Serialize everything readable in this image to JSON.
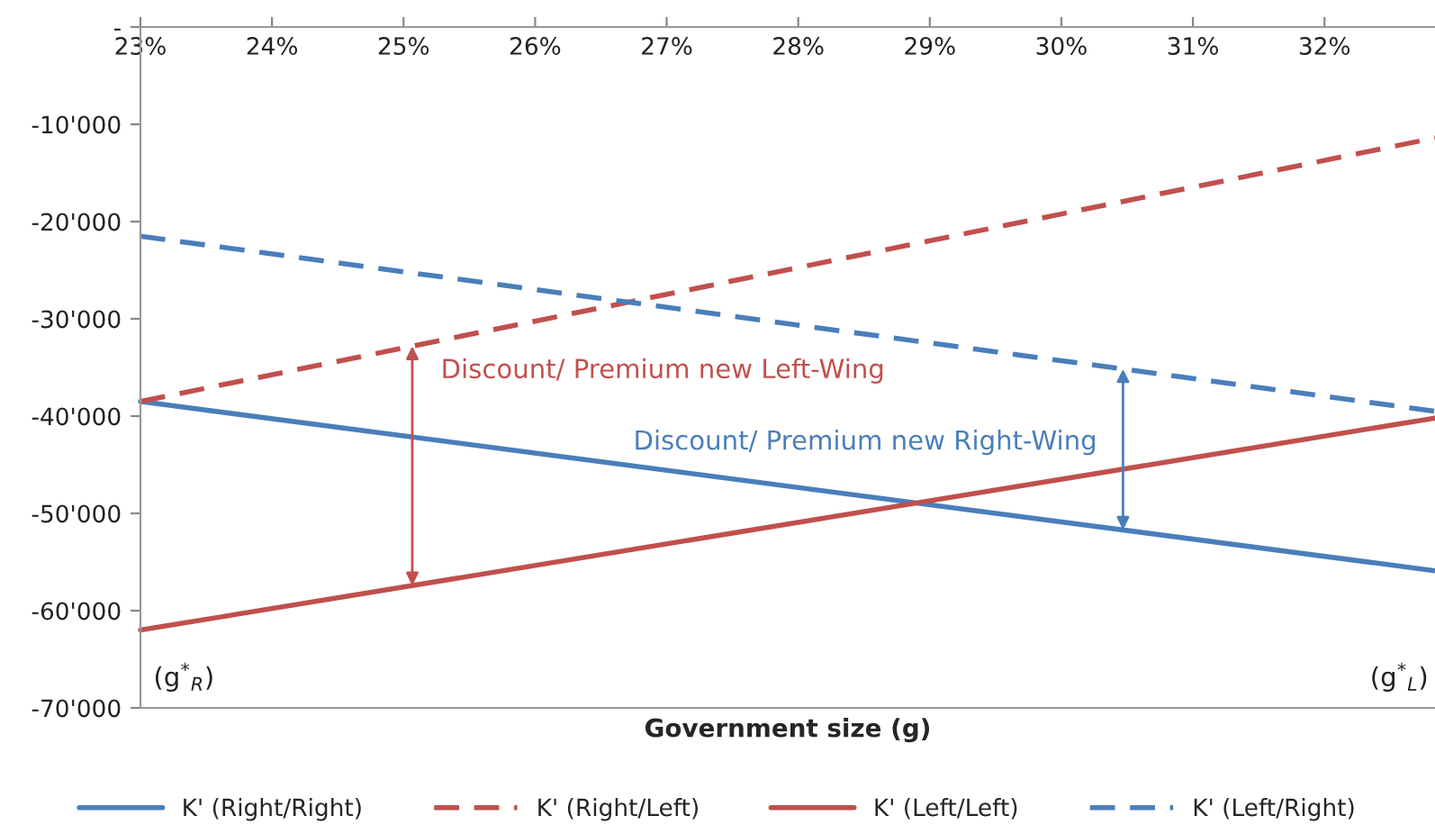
{
  "chart_data": {
    "type": "line",
    "xlabel": "Government size (g)",
    "x": [
      23,
      32.84
    ],
    "series": [
      {
        "name": "K' (Right/Right)",
        "color": "#4a7ebb",
        "line_style": "solid",
        "values": [
          -38500,
          -55900
        ]
      },
      {
        "name": "K' (Right/Left)",
        "color": "#c0504d",
        "line_style": "dashed",
        "values": [
          -38500,
          -11400
        ]
      },
      {
        "name": "K' (Left/Left)",
        "color": "#c0504d",
        "line_style": "solid",
        "values": [
          -62000,
          -40200
        ]
      },
      {
        "name": "K' (Left/Right)",
        "color": "#4a7ebb",
        "line_style": "dashed",
        "values": [
          -21500,
          -39500
        ]
      }
    ],
    "xlim": [
      23,
      32.84
    ],
    "xticks": [
      {
        "value": 23,
        "label": "23%"
      },
      {
        "value": 24,
        "label": "24%"
      },
      {
        "value": 25,
        "label": "25%"
      },
      {
        "value": 26,
        "label": "26%"
      },
      {
        "value": 27,
        "label": "27%"
      },
      {
        "value": 28,
        "label": "28%"
      },
      {
        "value": 29,
        "label": "29%"
      },
      {
        "value": 30,
        "label": "30%"
      },
      {
        "value": 31,
        "label": "31%"
      },
      {
        "value": 32,
        "label": "32%"
      }
    ],
    "ylim": [
      -70000,
      0
    ],
    "yticks": [
      {
        "value": 0,
        "label": "-"
      },
      {
        "value": -10000,
        "label": "-10'000"
      },
      {
        "value": -20000,
        "label": "-20'000"
      },
      {
        "value": -30000,
        "label": "-30'000"
      },
      {
        "value": -40000,
        "label": "-40'000"
      },
      {
        "value": -50000,
        "label": "-50'000"
      },
      {
        "value": -60000,
        "label": "-60'000"
      },
      {
        "value": -70000,
        "label": "-70'000"
      }
    ],
    "annotations": [
      "Discount/ Premium new Right-Wing",
      "Discount/ Premium new Left-Wing",
      "(g$^{*}$$_{R}$)",
      "(g$^{*}$$_{L}$)"
    ],
    "grid": false,
    "legend": "bottom",
    "marker": "none"
  }
}
